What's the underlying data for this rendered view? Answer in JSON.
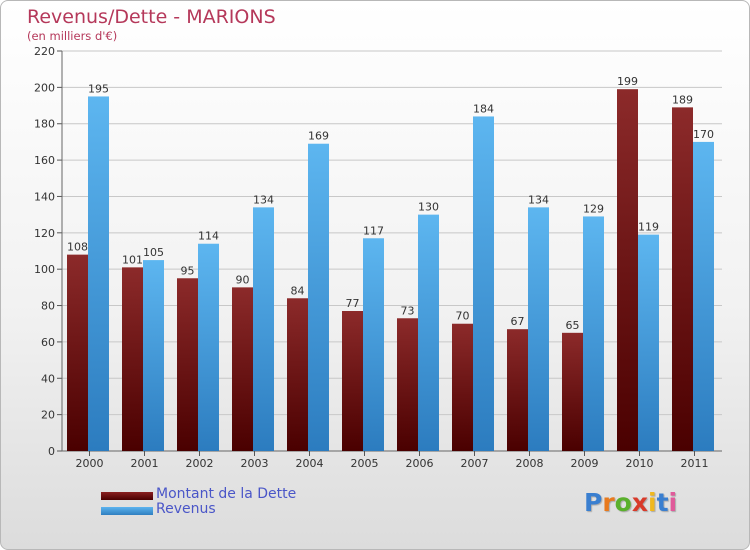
{
  "header": {
    "title": "Revenus/Dette - MARIONS",
    "subtitle": "(en milliers d'€)"
  },
  "colors": {
    "dette": "#7a1414",
    "revenus": "#4aa3e0"
  },
  "legend": {
    "items": [
      {
        "label": "Montant de la Dette",
        "color": "#6a0e0e"
      },
      {
        "label": "Revenus",
        "color": "#4aa3e0"
      }
    ]
  },
  "logo": {
    "text": "Proxiti",
    "letter_colors": [
      "#3a7fd0",
      "#e87a1e",
      "#5ab02c",
      "#d83a2a",
      "#f0b81e",
      "#3a7fd0",
      "#e05a9a"
    ]
  },
  "chart_data": {
    "type": "bar",
    "categories": [
      "2000",
      "2001",
      "2002",
      "2003",
      "2004",
      "2005",
      "2006",
      "2007",
      "2008",
      "2009",
      "2010",
      "2011"
    ],
    "series": [
      {
        "name": "Montant de la Dette",
        "values": [
          108,
          101,
          95,
          90,
          84,
          77,
          73,
          70,
          67,
          65,
          199,
          189
        ]
      },
      {
        "name": "Revenus",
        "values": [
          195,
          105,
          114,
          134,
          169,
          117,
          130,
          184,
          134,
          129,
          119,
          170
        ]
      }
    ],
    "ylim": [
      0,
      220
    ],
    "yticks": [
      0,
      20,
      40,
      60,
      80,
      100,
      120,
      140,
      160,
      180,
      200,
      220
    ],
    "grid": true,
    "legend_position": "bottom-left"
  }
}
